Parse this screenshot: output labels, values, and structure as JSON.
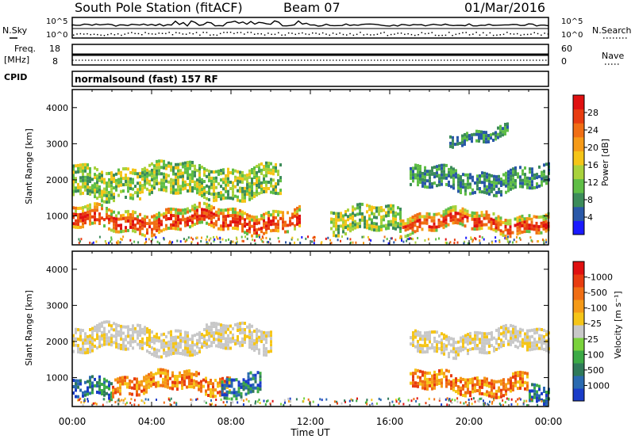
{
  "header": {
    "station": "South Pole Station (fitACF)",
    "beam": "Beam 07",
    "date": "01/Mar/2016"
  },
  "noise_panel": {
    "left_label": "N.Sky",
    "left_ticks": [
      "10^5",
      "10^0"
    ],
    "right_ticks": [
      "10^5",
      "10^0"
    ],
    "right_label": "N.Search"
  },
  "freq_panel": {
    "left_label_line1": "Freq.",
    "left_label_line2": "[MHz]",
    "left_ticks": [
      "18",
      "8"
    ],
    "right_ticks": [
      "60",
      "0"
    ],
    "right_label": "Nave"
  },
  "cpid_panel": {
    "label": "CPID",
    "text": "normalsound (fast) 157 RF"
  },
  "x_axis": {
    "ticks": [
      "00:00",
      "04:00",
      "08:00",
      "12:00",
      "16:00",
      "20:00",
      "00:00"
    ],
    "label": "Time UT"
  },
  "chart_data": [
    {
      "type": "heatmap",
      "panel": "power",
      "xlabel": "Time UT",
      "ylabel": "Slant Range [km]",
      "xlim": [
        0,
        24
      ],
      "ylim": [
        200,
        4500
      ],
      "yticks": [
        1000,
        2000,
        3000,
        4000
      ],
      "colorbar": {
        "label": "Power [dB]",
        "ticks": [
          "4",
          "8",
          "12",
          "16",
          "20",
          "24",
          "28"
        ],
        "colors": [
          "#1a1aff",
          "#2a58a8",
          "#3c8c5a",
          "#5fbe46",
          "#a9d23c",
          "#f5c518",
          "#f59a18",
          "#f06e14",
          "#e83c10",
          "#e01010"
        ]
      },
      "echo_bands": [
        {
          "t_start": 0.0,
          "t_end": 11.5,
          "range_km": [
            600,
            1200
          ],
          "level": "high"
        },
        {
          "t_start": 0.0,
          "t_end": 10.5,
          "range_km": [
            1600,
            2400
          ],
          "level": "medium"
        },
        {
          "t_start": 13.0,
          "t_end": 16.5,
          "range_km": [
            500,
            1200
          ],
          "level": "medium"
        },
        {
          "t_start": 16.5,
          "t_end": 24.0,
          "range_km": [
            600,
            1100
          ],
          "level": "high"
        },
        {
          "t_start": 17.0,
          "t_end": 24.0,
          "range_km": [
            1700,
            2300
          ],
          "level": "low"
        },
        {
          "t_start": 19.0,
          "t_end": 22.0,
          "range_km": [
            3100,
            3400
          ],
          "level": "low"
        }
      ]
    },
    {
      "type": "heatmap",
      "panel": "velocity",
      "xlabel": "Time UT",
      "ylabel": "Slant Range [km]",
      "xlim": [
        0,
        24
      ],
      "ylim": [
        200,
        4500
      ],
      "yticks": [
        1000,
        2000,
        3000,
        4000
      ],
      "colorbar": {
        "label": "Velocity [m s⁻¹]",
        "ticks": [
          "1000",
          "500",
          "100",
          "25",
          "-25",
          "-100",
          "-500",
          "-1000"
        ],
        "colors": [
          "#1a3cc8",
          "#2a6ab0",
          "#2f7a5a",
          "#3caa46",
          "#7ad23c",
          "#c8c8c8",
          "#f5c518",
          "#f59a18",
          "#f06e14",
          "#e83c10",
          "#e01010"
        ]
      },
      "echo_bands": [
        {
          "t_start": 0.0,
          "t_end": 2.0,
          "range_km": [
            400,
            900
          ],
          "velocity": "positive"
        },
        {
          "t_start": 2.0,
          "t_end": 8.0,
          "range_km": [
            600,
            1100
          ],
          "velocity": "negative"
        },
        {
          "t_start": 7.5,
          "t_end": 9.5,
          "range_km": [
            400,
            1000
          ],
          "velocity": "positive"
        },
        {
          "t_start": 0.0,
          "t_end": 10.0,
          "range_km": [
            1700,
            2400
          ],
          "velocity": "near-zero"
        },
        {
          "t_start": 17.0,
          "t_end": 23.0,
          "range_km": [
            600,
            1100
          ],
          "velocity": "negative"
        },
        {
          "t_start": 17.0,
          "t_end": 24.0,
          "range_km": [
            1700,
            2300
          ],
          "velocity": "near-zero"
        },
        {
          "t_start": 23.0,
          "t_end": 24.0,
          "range_km": [
            400,
            900
          ],
          "velocity": "positive"
        }
      ]
    }
  ]
}
